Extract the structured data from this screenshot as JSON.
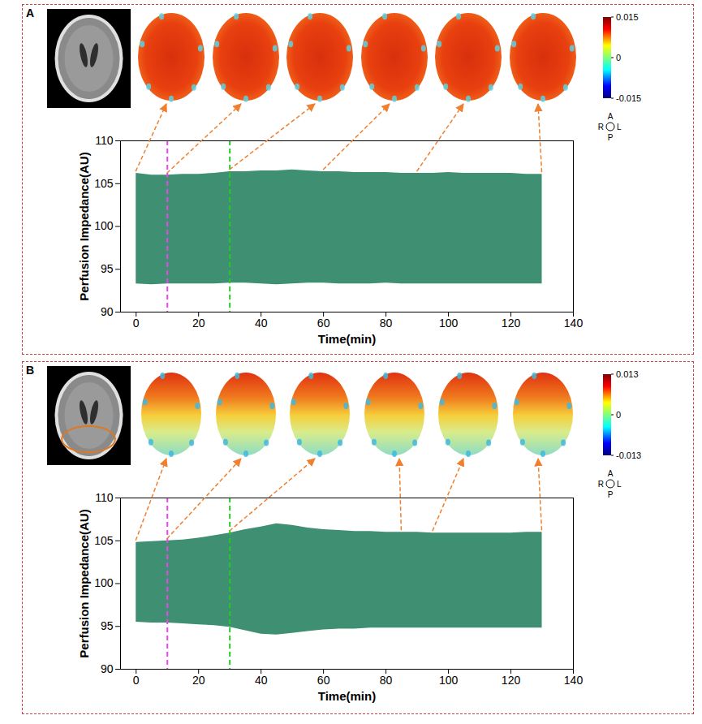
{
  "chart_data": [
    {
      "type": "area",
      "panel": "A",
      "xlabel": "Time(min)",
      "ylabel": "Perfusion Impedance(AU)",
      "x": [
        0,
        5,
        10,
        15,
        20,
        25,
        30,
        35,
        40,
        45,
        50,
        55,
        60,
        65,
        70,
        75,
        80,
        85,
        90,
        95,
        100,
        105,
        110,
        115,
        120,
        125,
        130
      ],
      "upper": [
        106.2,
        106.0,
        106.0,
        106.1,
        106.1,
        106.2,
        106.4,
        106.4,
        106.5,
        106.5,
        106.6,
        106.5,
        106.4,
        106.4,
        106.3,
        106.3,
        106.3,
        106.2,
        106.2,
        106.2,
        106.3,
        106.2,
        106.2,
        106.2,
        106.2,
        106.1,
        106.1
      ],
      "lower": [
        93.3,
        93.2,
        93.3,
        93.3,
        93.3,
        93.3,
        93.4,
        93.4,
        93.3,
        93.2,
        93.3,
        93.4,
        93.4,
        93.3,
        93.3,
        93.3,
        93.4,
        93.3,
        93.3,
        93.3,
        93.3,
        93.3,
        93.3,
        93.3,
        93.3,
        93.3,
        93.3
      ],
      "color": "#3f8f72",
      "xlim": [
        -5,
        140
      ],
      "xticks": [
        0,
        20,
        40,
        60,
        80,
        100,
        120,
        140
      ],
      "ylim": [
        90,
        110
      ],
      "yticks": [
        90,
        95,
        100,
        105,
        110
      ],
      "vlines": [
        {
          "x": 10,
          "color": "#ee44ee",
          "line_style": "dashed"
        },
        {
          "x": 30,
          "color": "#22cc22",
          "line_style": "dashed"
        }
      ],
      "snapshot_times": [
        0,
        10,
        30,
        60,
        90,
        130
      ],
      "colorbar": {
        "range": [
          -0.015,
          0.015
        ],
        "ticks": [
          0.015,
          0,
          -0.015
        ]
      },
      "orientation_labels": {
        "anterior": "A",
        "posterior": "P",
        "right": "R",
        "left": "L"
      }
    },
    {
      "type": "area",
      "panel": "B",
      "xlabel": "Time(min)",
      "ylabel": "Perfusion Impedance(AU)",
      "x": [
        0,
        5,
        10,
        15,
        20,
        25,
        30,
        35,
        40,
        45,
        50,
        55,
        60,
        65,
        70,
        75,
        80,
        85,
        90,
        95,
        100,
        105,
        110,
        115,
        120,
        125,
        130
      ],
      "upper": [
        104.8,
        104.9,
        105.0,
        105.1,
        105.3,
        105.6,
        105.9,
        106.3,
        106.6,
        107.0,
        106.8,
        106.5,
        106.3,
        106.2,
        106.1,
        106.1,
        106.0,
        106.0,
        106.0,
        105.9,
        105.9,
        105.9,
        105.9,
        105.9,
        105.9,
        106.0,
        106.0
      ],
      "lower": [
        95.5,
        95.4,
        95.4,
        95.3,
        95.2,
        95.1,
        94.9,
        94.5,
        94.1,
        94.0,
        94.2,
        94.4,
        94.6,
        94.7,
        94.7,
        94.8,
        94.8,
        94.8,
        94.8,
        94.8,
        94.8,
        94.8,
        94.8,
        94.8,
        94.8,
        94.8,
        94.8
      ],
      "color": "#3f8f72",
      "xlim": [
        -5,
        140
      ],
      "xticks": [
        0,
        20,
        40,
        60,
        80,
        100,
        120,
        140
      ],
      "ylim": [
        90,
        110
      ],
      "yticks": [
        90,
        95,
        100,
        105,
        110
      ],
      "vlines": [
        {
          "x": 10,
          "color": "#ee44ee",
          "line_style": "dashed"
        },
        {
          "x": 30,
          "color": "#22cc22",
          "line_style": "dashed"
        }
      ],
      "snapshot_times": [
        0,
        10,
        30,
        85,
        95,
        130
      ],
      "colorbar": {
        "range": [
          -0.013,
          0.013
        ],
        "ticks": [
          0.013,
          0,
          -0.013
        ]
      },
      "orientation_labels": {
        "anterior": "A",
        "posterior": "P",
        "right": "R",
        "left": "L"
      }
    }
  ]
}
